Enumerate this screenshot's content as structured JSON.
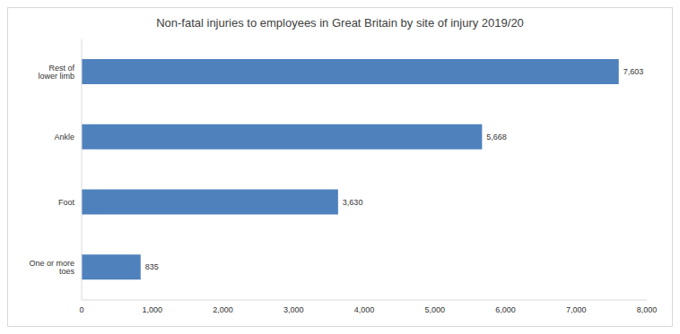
{
  "chart_data": {
    "type": "bar",
    "title": "Non-fatal injuries to employees in Great Britain by site of injury 2019/20",
    "orientation": "horizontal",
    "categories": [
      "Rest of lower limb",
      "Ankle",
      "Foot",
      "One or more toes"
    ],
    "values": [
      7603,
      5668,
      3630,
      835
    ],
    "value_labels": [
      "7,603",
      "5,668",
      "3,630",
      "835"
    ],
    "data_labels": true,
    "color": "#4f81bd",
    "xlim": [
      0,
      8000
    ],
    "xticks": [
      0,
      {
        "value": 1000,
        "label": "1,000"
      },
      {
        "value": 2000,
        "label": "2,000"
      },
      {
        "value": 3000,
        "label": "3,000"
      },
      {
        "value": 4000,
        "label": "4,000"
      },
      {
        "value": 5000,
        "label": "5,000"
      },
      {
        "value": 6000,
        "label": "6,000"
      },
      {
        "value": 7000,
        "label": "7,000"
      },
      {
        "value": 8000,
        "label": "8,000"
      }
    ],
    "grid": false
  }
}
